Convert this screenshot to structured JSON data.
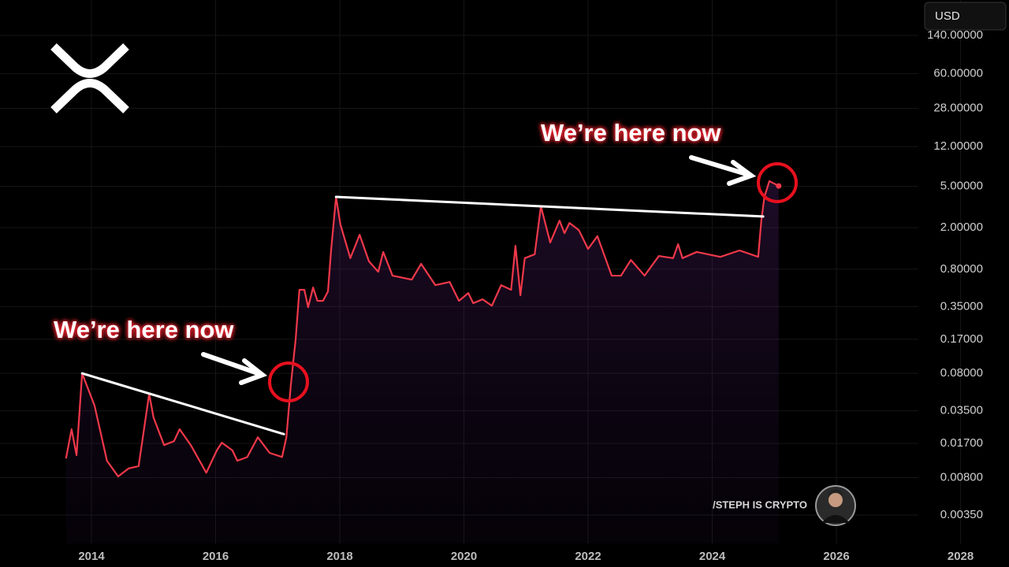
{
  "chart_data": {
    "type": "line",
    "currency": "USD",
    "credit": "/STEPH IS CRYPTO",
    "annotations": [
      "We’re here now",
      "We’re here now"
    ],
    "log_y": true,
    "grid": true,
    "xlim": [
      2012.527,
      2028.78
    ],
    "ylim": [
      0.00187,
      306
    ],
    "xticks": [
      2014,
      2016,
      2018,
      2020,
      2022,
      2024,
      2026,
      2028
    ],
    "yticks": [
      {
        "value": 0.0035,
        "label": "0.00350"
      },
      {
        "value": 0.008,
        "label": "0.00800"
      },
      {
        "value": 0.017,
        "label": "0.01700"
      },
      {
        "value": 0.035,
        "label": "0.03500"
      },
      {
        "value": 0.08,
        "label": "0.08000"
      },
      {
        "value": 0.17,
        "label": "0.17000"
      },
      {
        "value": 0.35,
        "label": "0.35000"
      },
      {
        "value": 0.8,
        "label": "0.80000"
      },
      {
        "value": 2,
        "label": "2.00000"
      },
      {
        "value": 5,
        "label": "5.00000"
      },
      {
        "value": 12,
        "label": "12.00000"
      },
      {
        "value": 28,
        "label": "28.00000"
      },
      {
        "value": 60,
        "label": "60.00000"
      },
      {
        "value": 140,
        "label": "140.00000"
      }
    ],
    "x": [
      2013.59,
      2013.68,
      2013.76,
      2013.85,
      2014.05,
      2014.25,
      2014.43,
      2014.6,
      2014.76,
      2014.93,
      2015.0,
      2015.17,
      2015.33,
      2015.42,
      2015.6,
      2015.85,
      2016.02,
      2016.1,
      2016.27,
      2016.35,
      2016.51,
      2016.68,
      2016.87,
      2017.07,
      2017.14,
      2017.21,
      2017.29,
      2017.35,
      2017.43,
      2017.49,
      2017.57,
      2017.64,
      2017.73,
      2017.81,
      2017.86,
      2017.94,
      2018.01,
      2018.17,
      2018.32,
      2018.47,
      2018.62,
      2018.7,
      2018.85,
      2019.16,
      2019.31,
      2019.54,
      2019.77,
      2019.92,
      2020.07,
      2020.15,
      2020.3,
      2020.45,
      2020.6,
      2020.76,
      2020.83,
      2020.91,
      2020.98,
      2021.14,
      2021.24,
      2021.39,
      2021.54,
      2021.62,
      2021.7,
      2021.85,
      2022.0,
      2022.15,
      2022.38,
      2022.53,
      2022.69,
      2022.91,
      2023.14,
      2023.37,
      2023.45,
      2023.52,
      2023.75,
      2024.13,
      2024.44,
      2024.74,
      2024.79,
      2024.84,
      2024.92,
      2025.07
    ],
    "series": [
      {
        "color": "#f0384a",
        "values": [
          0.0122,
          0.0233,
          0.0131,
          0.08,
          0.0393,
          0.0116,
          0.0082,
          0.0098,
          0.0103,
          0.051,
          0.0302,
          0.0164,
          0.0179,
          0.0233,
          0.0164,
          0.0089,
          0.0146,
          0.0173,
          0.0146,
          0.0116,
          0.0126,
          0.0195,
          0.0138,
          0.0126,
          0.0195,
          0.0605,
          0.172,
          0.507,
          0.507,
          0.345,
          0.533,
          0.397,
          0.397,
          0.489,
          1.21,
          3.95,
          2.15,
          1.02,
          1.71,
          0.95,
          0.755,
          1.17,
          0.693,
          0.635,
          0.9,
          0.562,
          0.603,
          0.397,
          0.472,
          0.377,
          0.411,
          0.357,
          0.562,
          0.507,
          1.34,
          0.449,
          1.02,
          1.11,
          3.21,
          1.44,
          2.34,
          1.77,
          2.22,
          1.9,
          1.25,
          1.66,
          0.693,
          0.693,
          0.98,
          0.693,
          1.07,
          1.02,
          1.39,
          1.02,
          1.17,
          1.05,
          1.21,
          1.05,
          2.34,
          3.95,
          5.6,
          5.03
        ]
      }
    ],
    "trendlines": [
      {
        "color": "#ffffff",
        "x": [
          2013.85,
          2017.1
        ],
        "values": [
          0.08,
          0.0209
        ]
      },
      {
        "color": "#ffffff",
        "x": [
          2017.94,
          2024.82
        ],
        "values": [
          3.95,
          2.56
        ]
      }
    ]
  }
}
